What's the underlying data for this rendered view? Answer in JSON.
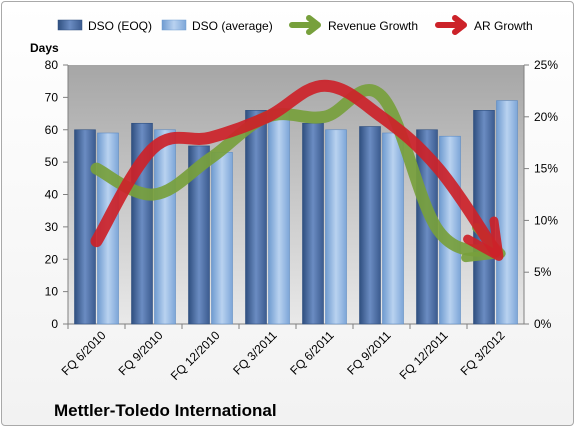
{
  "chart_data": {
    "type": "bar",
    "title": "Mettler-Toledo International",
    "ylabel": "Days",
    "categories": [
      "FQ 6/2010",
      "FQ 9/2010",
      "FQ 12/2010",
      "FQ 3/2011",
      "FQ 6/2011",
      "FQ 9/2011",
      "FQ 12/2011",
      "FQ 3/2012"
    ],
    "ylim": [
      0,
      80
    ],
    "y_ticks": [
      "0",
      "10",
      "20",
      "30",
      "40",
      "50",
      "60",
      "70",
      "80"
    ],
    "y2lim": [
      0,
      25
    ],
    "y2_ticks": [
      "0%",
      "5%",
      "10%",
      "15%",
      "20%",
      "25%"
    ],
    "grid": false,
    "legend_position": "top",
    "series": [
      {
        "name": "DSO (EOQ)",
        "type": "bar",
        "axis": "left",
        "color": "#4f6fa3",
        "values": [
          60,
          62,
          55,
          66,
          62,
          61,
          60,
          66
        ]
      },
      {
        "name": "DSO (average)",
        "type": "bar",
        "axis": "left",
        "color": "#8fb4e3",
        "values": [
          59,
          60,
          53,
          66,
          60,
          59,
          58,
          69
        ]
      },
      {
        "name": "Revenue Growth",
        "type": "line",
        "axis": "right",
        "unit": "%",
        "color": "#77a03c",
        "values": [
          15,
          12.5,
          16,
          20,
          20,
          22,
          9,
          7
        ]
      },
      {
        "name": "AR Growth",
        "type": "line",
        "axis": "right",
        "unit": "%",
        "color": "#cc2229",
        "values": [
          8,
          17,
          18,
          20,
          23,
          20,
          15,
          7
        ]
      }
    ]
  }
}
